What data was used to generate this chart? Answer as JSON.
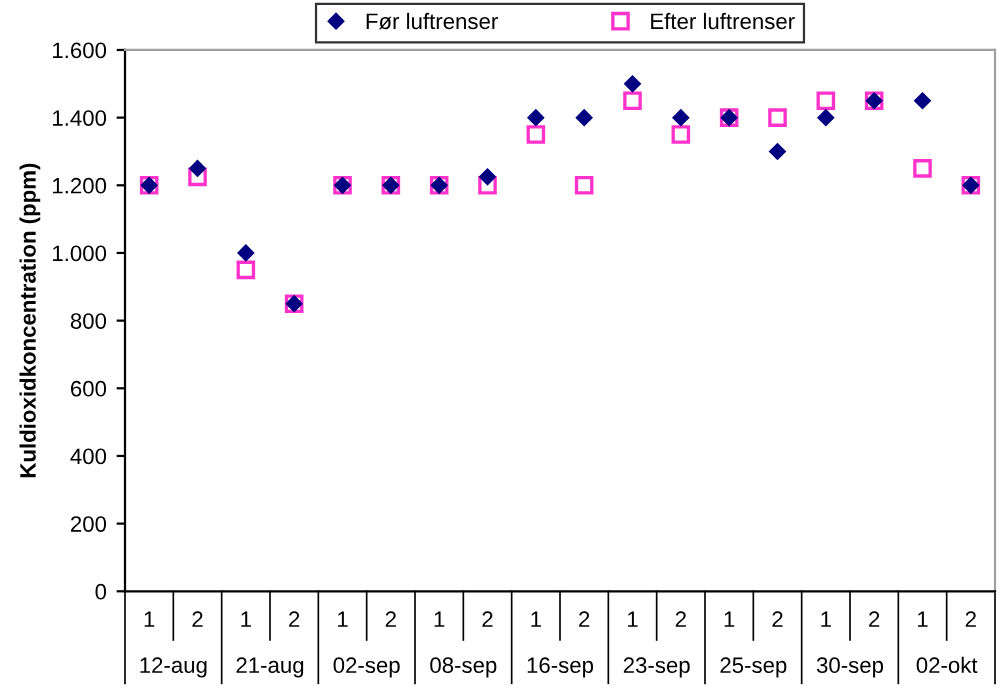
{
  "chart_data": {
    "type": "scatter",
    "ylabel": "Kuldioxidkoncentration (ppm)",
    "categories": [
      "1",
      "2",
      "1",
      "2",
      "1",
      "2",
      "1",
      "2",
      "1",
      "2",
      "1",
      "2",
      "1",
      "2",
      "1",
      "2",
      "1",
      "2"
    ],
    "annotations": [
      "12-aug",
      "21-aug",
      "02-sep",
      "08-sep",
      "16-sep",
      "23-sep",
      "25-sep",
      "30-sep",
      "02-okt"
    ],
    "series": [
      {
        "name": "Før luftrenser",
        "color": "#000080",
        "marker": "diamond",
        "values": [
          1200,
          1250,
          1000,
          850,
          1200,
          1200,
          1200,
          1225,
          1400,
          1400,
          1500,
          1400,
          1400,
          1300,
          1400,
          1450,
          1450,
          1200
        ]
      },
      {
        "name": "Efter luftrenser",
        "color": "#ff33cc",
        "marker": "square",
        "values": [
          1200,
          1225,
          950,
          850,
          1200,
          1200,
          1200,
          1200,
          1350,
          1200,
          1450,
          1350,
          1400,
          1400,
          1450,
          1450,
          1250,
          1200
        ]
      }
    ],
    "ylim": [
      0,
      1600
    ],
    "yticks": [
      {
        "value": 0,
        "label": "0"
      },
      {
        "value": 200,
        "label": "200"
      },
      {
        "value": 400,
        "label": "400"
      },
      {
        "value": 600,
        "label": "600"
      },
      {
        "value": 800,
        "label": "800"
      },
      {
        "value": 1000,
        "label": "1.000"
      },
      {
        "value": 1200,
        "label": "1.200"
      },
      {
        "value": 1400,
        "label": "1.400"
      },
      {
        "value": 1600,
        "label": "1.600"
      }
    ],
    "grid": false,
    "legend": "top"
  }
}
